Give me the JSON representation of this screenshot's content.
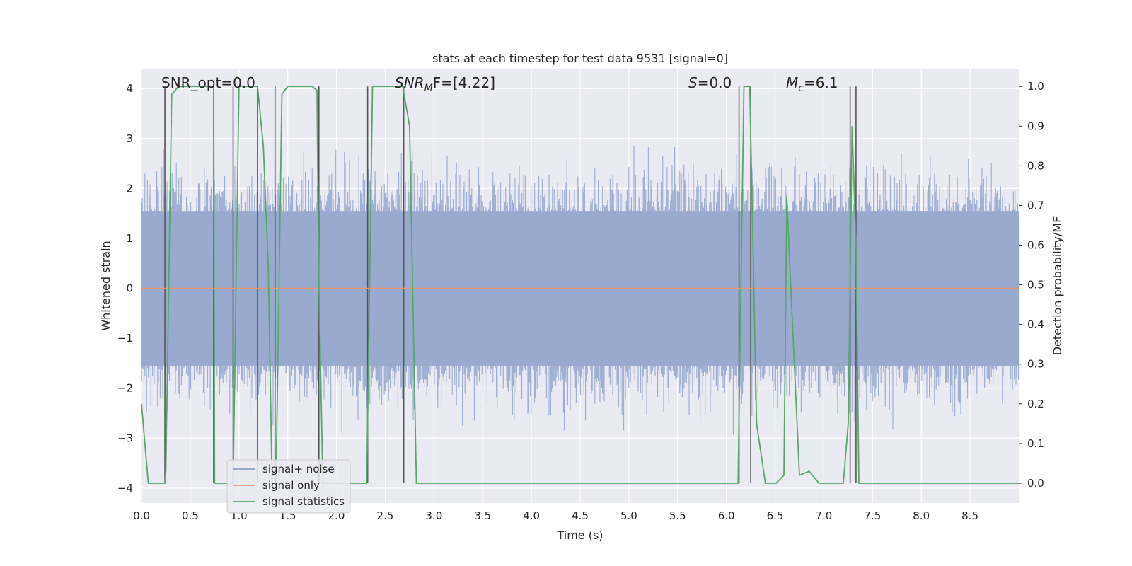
{
  "chart_data": {
    "type": "line",
    "title": "stats at each timestep for test data 9531 [signal=0]",
    "xlabel": "Time (s)",
    "ylabel_left": "Whitened strain",
    "ylabel_right": "Detection probability/MF",
    "xlim": [
      0,
      9.0
    ],
    "ylim_left": [
      -4.3,
      4.4
    ],
    "ylim_right": [
      -0.05,
      1.045
    ],
    "xticks": [
      "0.0",
      "0.5",
      "1.0",
      "1.5",
      "2.0",
      "2.5",
      "3.0",
      "3.5",
      "4.0",
      "4.5",
      "5.0",
      "5.5",
      "6.0",
      "6.5",
      "7.0",
      "7.5",
      "8.0",
      "8.5"
    ],
    "yticks_left": [
      "−4",
      "−3",
      "−2",
      "−1",
      "0",
      "1",
      "2",
      "3",
      "4"
    ],
    "yticks_right": [
      "0.0",
      "0.1",
      "0.2",
      "0.3",
      "0.4",
      "0.5",
      "0.6",
      "0.7",
      "0.8",
      "0.9",
      "1.0"
    ],
    "grid": true,
    "legend_placement": "lower-left",
    "annotations": {
      "snr_opt": "SNR_opt=0.0",
      "snr_mf_main": "SNR",
      "snr_mf_sub": "M",
      "snr_mf_rest": "F=[4.22]",
      "s_main": "S",
      "s_rest": "=0.0",
      "mc_main": "M",
      "mc_sub": "c",
      "mc_rest": "=6.1"
    },
    "series": [
      {
        "name": "signal+ noise",
        "color": "#8da0cb",
        "axis": "left",
        "style": "noise band, approx range −3.9 to 3.6"
      },
      {
        "name": "signal only",
        "color": "#e99675",
        "axis": "left",
        "values_constant": 0.0
      },
      {
        "name": "signal statistics",
        "color": "#55a868",
        "axis": "right",
        "x": [
          0.0,
          0.07,
          0.24,
          0.25,
          0.31,
          0.38,
          0.74,
          0.75,
          0.8,
          0.94,
          1.0,
          1.19,
          1.25,
          1.3,
          1.34,
          1.38,
          1.44,
          1.5,
          1.75,
          1.8,
          1.82,
          1.86,
          2.27,
          2.31,
          2.37,
          2.68,
          2.75,
          2.82,
          3.0,
          4.0,
          5.0,
          6.0,
          6.12,
          6.18,
          6.24,
          6.31,
          6.4,
          6.51,
          6.59,
          6.62,
          6.66,
          6.75,
          6.85,
          6.95,
          7.0,
          7.1,
          7.2,
          7.25,
          7.29,
          7.33,
          7.36,
          7.4,
          7.5,
          8.0,
          8.5,
          9.0
        ],
        "values": [
          0.2,
          0.0,
          0.0,
          0.03,
          0.98,
          1.0,
          1.0,
          0.0,
          0.0,
          0.0,
          1.0,
          1.0,
          0.85,
          0.55,
          0.0,
          0.0,
          0.98,
          1.0,
          1.0,
          0.99,
          0.5,
          0.0,
          0.0,
          0.0,
          1.0,
          1.0,
          0.9,
          0.0,
          0.0,
          0.0,
          0.0,
          0.0,
          0.0,
          1.0,
          1.0,
          0.15,
          0.0,
          0.0,
          0.02,
          0.72,
          0.5,
          0.02,
          0.03,
          0.0,
          0.0,
          0.0,
          0.0,
          0.15,
          0.9,
          0.6,
          0.0,
          0.0,
          0.0,
          0.0,
          0.0,
          0.0
        ]
      }
    ],
    "vertical_markers_x": [
      0.24,
      0.74,
      0.94,
      1.19,
      1.37,
      1.82,
      2.32,
      2.69,
      6.13,
      6.25,
      7.27,
      7.33
    ],
    "secondary_hlines_right": [
      0.303,
      0.403,
      0.603,
      0.703
    ]
  }
}
